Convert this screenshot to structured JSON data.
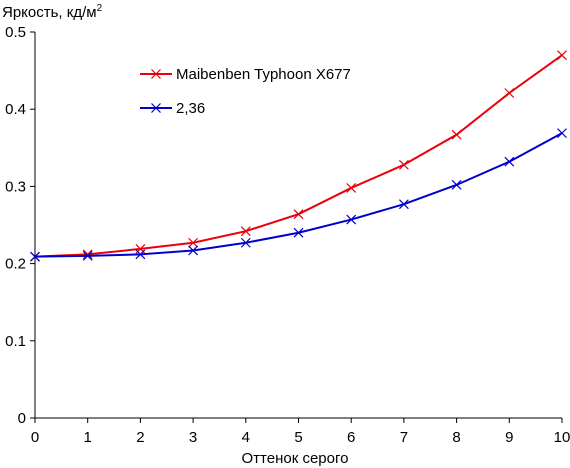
{
  "chart_data": {
    "type": "line",
    "title": "",
    "ylabel_text": "Яркость, кд/м",
    "ylabel_sup": "2",
    "xlabel": "Оттенок серого",
    "x": [
      0,
      1,
      2,
      3,
      4,
      5,
      6,
      7,
      8,
      9,
      10
    ],
    "xlim": [
      0,
      10
    ],
    "ylim": [
      0,
      0.5
    ],
    "x_ticks": [
      "0",
      "1",
      "2",
      "3",
      "4",
      "5",
      "6",
      "7",
      "8",
      "9",
      "10"
    ],
    "y_ticks": [
      "0",
      "0.1",
      "0.2",
      "0.3",
      "0.4",
      "0.5"
    ],
    "y_tick_values": [
      0,
      0.1,
      0.2,
      0.3,
      0.4,
      0.5
    ],
    "grid": false,
    "legend_position": "top-left",
    "series": [
      {
        "name": "Maibenben Typhoon X677",
        "color": "#e8000b",
        "marker": "x",
        "values": [
          0.209,
          0.212,
          0.219,
          0.227,
          0.242,
          0.264,
          0.298,
          0.328,
          0.367,
          0.421,
          0.47
        ]
      },
      {
        "name": "2,36",
        "color": "#0000cc",
        "marker": "x",
        "values": [
          0.209,
          0.21,
          0.212,
          0.217,
          0.227,
          0.24,
          0.257,
          0.277,
          0.302,
          0.332,
          0.369
        ]
      }
    ]
  }
}
